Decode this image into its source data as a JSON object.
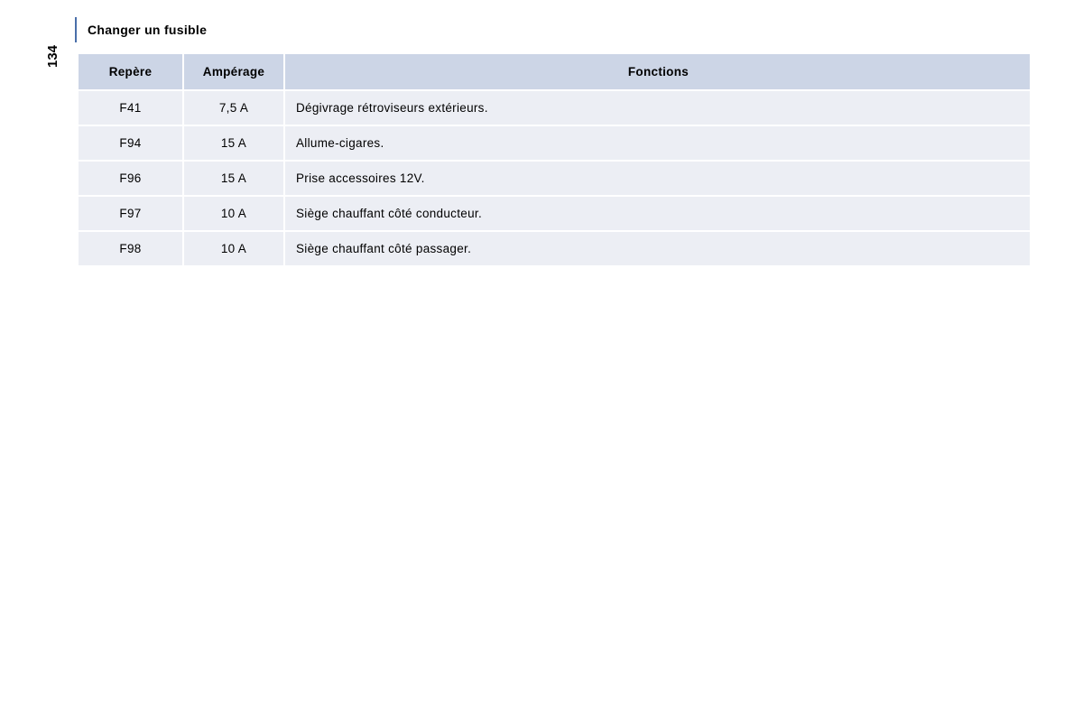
{
  "page_number": "134",
  "title": "Changer un fusible",
  "table": {
    "columns": [
      "Repère",
      "Ampérage",
      "Fonctions"
    ],
    "rows": [
      {
        "repere": "F41",
        "amperage": "7,5 A",
        "fonction": "Dégivrage rétroviseurs extérieurs."
      },
      {
        "repere": "F94",
        "amperage": "15 A",
        "fonction": "Allume-cigares."
      },
      {
        "repere": "F96",
        "amperage": "15 A",
        "fonction": "Prise accessoires 12V."
      },
      {
        "repere": "F97",
        "amperage": "10 A",
        "fonction": "Siège chauffant côté conducteur."
      },
      {
        "repere": "F98",
        "amperage": "10 A",
        "fonction": "Siège chauffant côté passager."
      }
    ],
    "header_bg": "#ccd5e6",
    "row_bg": "#eceef4",
    "font_size": 13.5,
    "col_widths": {
      "repere": 115,
      "amperage": 110
    }
  },
  "colors": {
    "background": "#ffffff",
    "text": "#000000",
    "marker": "#4a6faa"
  }
}
